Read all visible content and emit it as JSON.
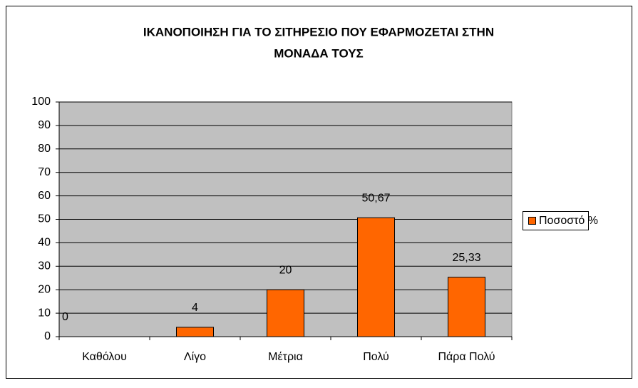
{
  "chart_data": {
    "type": "bar",
    "title": [
      "ΙΚΑΝΟΠΟΙΗΣΗ ΓΙΑ ΤΟ ΣΙΤΗΡΕΣΙΟ ΠΟΥ ΕΦΑΡΜΟΖΕΤΑΙ ΣΤΗΝ",
      "ΜΟΝΑΔΑ ΤΟΥΣ"
    ],
    "categories": [
      "Καθόλου",
      "Λίγο",
      "Μέτρια",
      "Πολύ",
      "Πάρα Πολύ"
    ],
    "series": [
      {
        "name": "Ποσοστό %",
        "color": "#ff6600",
        "values": [
          0,
          4,
          20,
          50.67,
          25.33
        ],
        "value_labels": [
          "0",
          "4",
          "20",
          "50,67",
          "25,33"
        ]
      }
    ],
    "ylim": [
      0,
      100
    ],
    "yticks": [
      0,
      10,
      20,
      30,
      40,
      50,
      60,
      70,
      80,
      90,
      100
    ],
    "grid": true,
    "legend": "right"
  }
}
